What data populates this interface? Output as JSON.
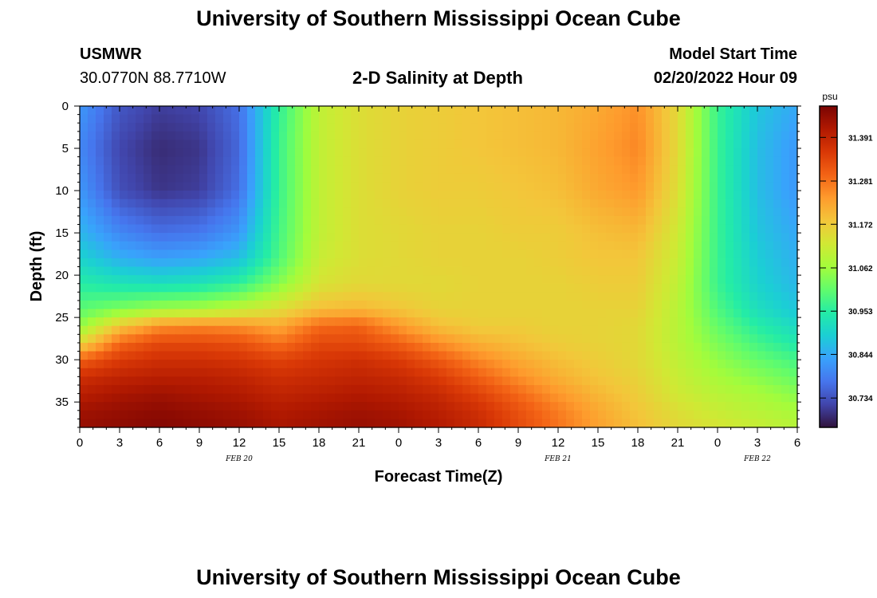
{
  "page": {
    "title": "University of Southern Mississippi Ocean Cube",
    "station_id": "USMWR",
    "station_coords": "30.0770N  88.7710W",
    "plot_title": "2-D Salinity at Depth",
    "model_start_label": "Model Start Time",
    "model_start_value": "02/20/2022 Hour 09",
    "footer_title": "University of Southern Mississippi Ocean Cube"
  },
  "chart_data": {
    "type": "heatmap",
    "title": "2-D Salinity at Depth",
    "xlabel": "Forecast Time(Z)",
    "ylabel": "Depth (ft)",
    "x_tick_labels": [
      "0",
      "3",
      "6",
      "9",
      "12",
      "15",
      "18",
      "21",
      "0",
      "3",
      "6",
      "9",
      "12",
      "15",
      "18",
      "21",
      "0",
      "3",
      "6"
    ],
    "x_range_hours_from_feb20_00z": [
      0,
      54
    ],
    "date_labels": [
      {
        "label": "FEB 20",
        "hour": 12
      },
      {
        "label": "FEB 21",
        "hour": 36
      },
      {
        "label": "FEB 22",
        "hour": 51
      }
    ],
    "y_ticks": [
      0,
      5,
      10,
      15,
      20,
      25,
      30,
      35
    ],
    "y_range": [
      0,
      38
    ],
    "y_inverted": true,
    "colorbar": {
      "unit": "psu",
      "tick_labels": [
        "31.391",
        "31.281",
        "31.172",
        "31.062",
        "30.953",
        "30.844",
        "30.734"
      ],
      "range": [
        30.66,
        31.47
      ],
      "colors": [
        "#30123b",
        "#4145ab",
        "#4675ed",
        "#39a2fc",
        "#1bcfd4",
        "#24eca6",
        "#61fc6c",
        "#a4fc3b",
        "#d1e834",
        "#f3c63a",
        "#fe9b2d",
        "#f36315",
        "#d93806",
        "#b11901",
        "#7a0403"
      ]
    },
    "grid": false,
    "salinity_x_hours": [
      0,
      3,
      6,
      9,
      12,
      15,
      18,
      21,
      24,
      27,
      30,
      33,
      36,
      39,
      42,
      45,
      48,
      51,
      54
    ],
    "salinity_depth_ft": [
      0,
      5,
      10,
      15,
      18,
      21,
      24,
      26,
      28,
      30,
      32,
      34,
      36,
      38
    ],
    "salinity_psu": [
      [
        30.82,
        30.74,
        30.71,
        30.72,
        30.77,
        30.96,
        31.1,
        31.14,
        31.16,
        31.17,
        31.18,
        31.19,
        31.2,
        31.22,
        31.25,
        31.15,
        30.97,
        30.88,
        30.84
      ],
      [
        30.8,
        30.72,
        30.69,
        30.7,
        30.76,
        30.97,
        31.1,
        31.14,
        31.16,
        31.17,
        31.18,
        31.19,
        31.2,
        31.23,
        31.26,
        31.15,
        30.97,
        30.87,
        30.82
      ],
      [
        30.82,
        30.73,
        30.7,
        30.71,
        30.77,
        30.97,
        31.1,
        31.14,
        31.16,
        31.17,
        31.17,
        31.18,
        31.19,
        31.22,
        31.24,
        31.14,
        30.97,
        30.87,
        30.82
      ],
      [
        30.86,
        30.8,
        30.77,
        30.78,
        30.82,
        30.98,
        31.1,
        31.14,
        31.15,
        31.16,
        31.16,
        31.17,
        31.17,
        31.19,
        31.2,
        31.12,
        30.97,
        30.88,
        30.84
      ],
      [
        30.9,
        30.85,
        30.83,
        30.84,
        30.87,
        30.99,
        31.11,
        31.14,
        31.15,
        31.16,
        31.16,
        31.16,
        31.17,
        31.18,
        31.18,
        31.11,
        30.97,
        30.89,
        30.85
      ],
      [
        30.95,
        30.93,
        30.92,
        30.93,
        30.96,
        31.04,
        31.13,
        31.15,
        31.15,
        31.15,
        31.16,
        31.16,
        31.16,
        31.17,
        31.17,
        31.1,
        30.97,
        30.9,
        30.86
      ],
      [
        31.0,
        31.03,
        31.06,
        31.07,
        31.1,
        31.14,
        31.19,
        31.2,
        31.18,
        31.16,
        31.16,
        31.16,
        31.16,
        31.16,
        31.16,
        31.09,
        30.99,
        30.92,
        30.88
      ],
      [
        31.05,
        31.18,
        31.25,
        31.26,
        31.25,
        31.22,
        31.29,
        31.3,
        31.24,
        31.19,
        31.17,
        31.17,
        31.16,
        31.16,
        31.15,
        31.09,
        31.01,
        30.95,
        30.91
      ],
      [
        31.15,
        31.29,
        31.33,
        31.33,
        31.32,
        31.28,
        31.33,
        31.33,
        31.3,
        31.25,
        31.21,
        31.19,
        31.17,
        31.16,
        31.15,
        31.09,
        31.03,
        30.98,
        30.94
      ],
      [
        31.3,
        31.35,
        31.37,
        31.37,
        31.36,
        31.34,
        31.36,
        31.37,
        31.35,
        31.31,
        31.26,
        31.22,
        31.19,
        31.17,
        31.15,
        31.1,
        31.05,
        31.01,
        30.98
      ],
      [
        31.37,
        31.39,
        31.4,
        31.4,
        31.39,
        31.37,
        31.38,
        31.39,
        31.38,
        31.35,
        31.3,
        31.25,
        31.21,
        31.18,
        31.16,
        31.11,
        31.07,
        31.04,
        31.01
      ],
      [
        31.4,
        31.42,
        31.43,
        31.42,
        31.41,
        31.39,
        31.4,
        31.41,
        31.4,
        31.38,
        31.34,
        31.29,
        31.24,
        31.2,
        31.17,
        31.12,
        31.09,
        31.07,
        31.04
      ],
      [
        31.43,
        31.44,
        31.45,
        31.44,
        31.43,
        31.41,
        31.42,
        31.43,
        31.42,
        31.4,
        31.37,
        31.32,
        31.27,
        31.22,
        31.18,
        31.14,
        31.11,
        31.09,
        31.07
      ],
      [
        31.44,
        31.45,
        31.46,
        31.45,
        31.44,
        31.42,
        31.43,
        31.44,
        31.43,
        31.41,
        31.38,
        31.33,
        31.28,
        31.23,
        31.19,
        31.15,
        31.13,
        31.11,
        31.09
      ]
    ]
  }
}
